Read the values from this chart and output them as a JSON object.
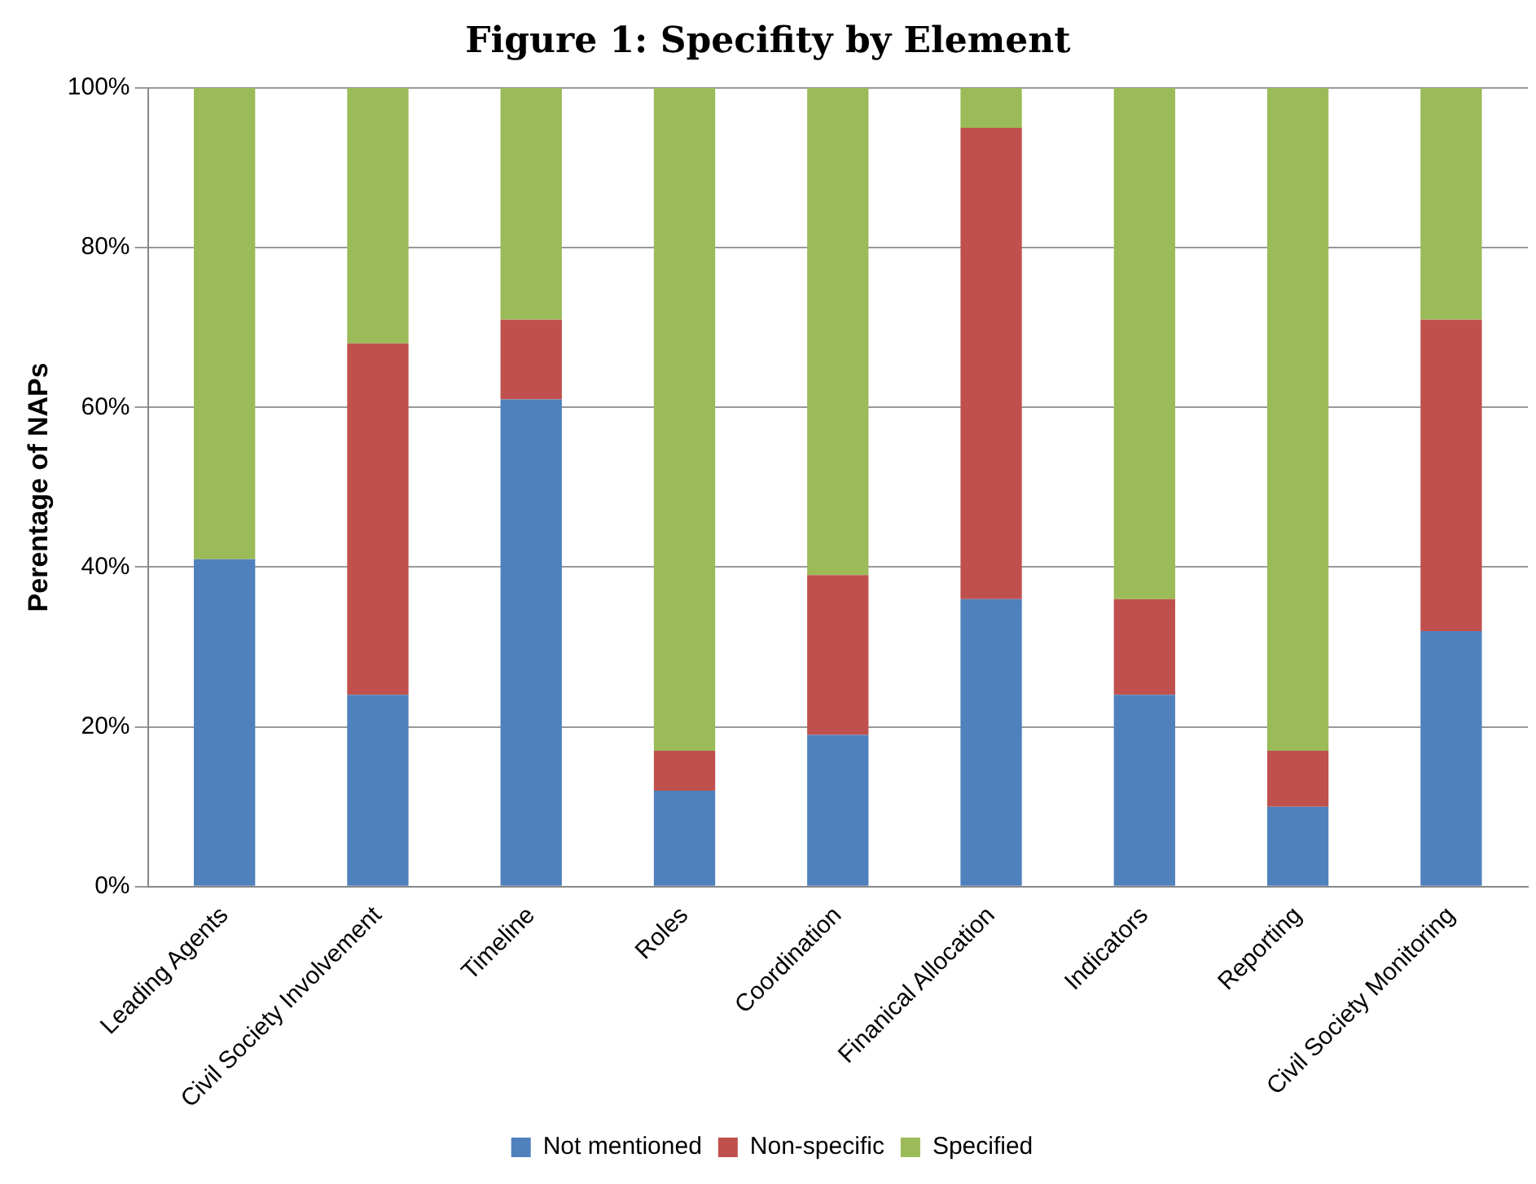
{
  "chart_data": {
    "type": "bar",
    "title": "Figure 1: Specifity by Element",
    "ylabel": "Perentage of NAPs",
    "categories": [
      "Leading Agents",
      "Civil Society Involvement",
      "Timeline",
      "Roles",
      "Coordination",
      "Finanical Allocation",
      "Indicators",
      "Reporting",
      "Civil Society Monitoring"
    ],
    "series": [
      {
        "name": "Not mentioned",
        "color": "#4f81bd",
        "values": [
          41,
          24,
          61,
          12,
          19,
          36,
          24,
          10,
          32
        ]
      },
      {
        "name": "Non-specific",
        "color": "#c0504d",
        "values": [
          0,
          44,
          10,
          5,
          20,
          59,
          12,
          7,
          39
        ]
      },
      {
        "name": "Specified",
        "color": "#9bbb59",
        "values": [
          59,
          32,
          29,
          83,
          61,
          5,
          64,
          83,
          29
        ]
      }
    ],
    "stacked": true,
    "ylim": [
      0,
      100
    ],
    "yticks": [
      {
        "value": 0,
        "label": "0%"
      },
      {
        "value": 20,
        "label": "20%"
      },
      {
        "value": 40,
        "label": "40%"
      },
      {
        "value": 60,
        "label": "60%"
      },
      {
        "value": 80,
        "label": "80%"
      },
      {
        "value": 100,
        "label": "100%"
      }
    ],
    "grid": "y",
    "legend": "bottom"
  }
}
